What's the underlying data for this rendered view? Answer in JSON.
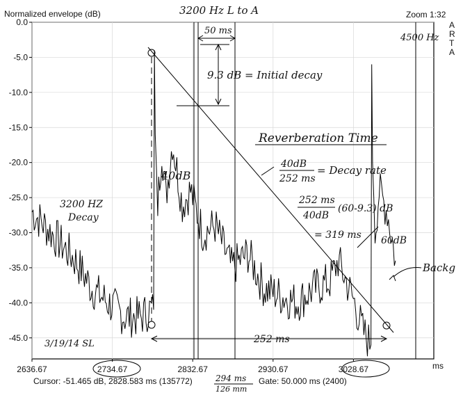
{
  "window": {
    "chart_title": "Normalized envelope (dB)",
    "zoom_label": "Zoom 1:32",
    "brand_vertical": "ARTA"
  },
  "status": {
    "cursor": "Cursor: -51.465 dB, 2828.583 ms (135772)",
    "gate": "Gate: 50.000 ms (2400)"
  },
  "chart_data": {
    "type": "line",
    "title": "Normalized envelope (dB)",
    "xlabel": "ms",
    "ylabel": "",
    "xlim": [
      2636.67,
      3126.67
    ],
    "ylim": [
      -48,
      0
    ],
    "x_ticks": [
      "2636.67",
      "2734.67",
      "2832.67",
      "2930.67",
      "3028.67"
    ],
    "y_ticks": [
      "0.0",
      "-5.0",
      "-10.0",
      "-15.0",
      "-20.0",
      "-25.0",
      "-30.0",
      "-35.0",
      "-40.0",
      "-45.0"
    ],
    "grid": true,
    "series": [
      {
        "name": "",
        "x": [
          2636.67,
          2660,
          2690,
          2710,
          2730,
          2750,
          2770,
          2780,
          2785,
          2786,
          2787,
          2790,
          2795,
          2800,
          2808,
          2820,
          2830,
          2845,
          2860,
          2880,
          2900,
          2920,
          2940,
          2960,
          2980,
          3000,
          3010,
          3020,
          3030,
          3040,
          3050,
          3051,
          3052,
          3055,
          3060,
          3070,
          3080
        ],
        "values": [
          -27,
          -30,
          -34,
          -38,
          -40,
          -42,
          -42,
          -41,
          -41,
          -4,
          -16,
          -26,
          -18,
          -25,
          -17,
          -26,
          -24,
          -30,
          -29,
          -35,
          -33,
          -38,
          -39,
          -40,
          -38,
          -37,
          -34,
          -37,
          -40,
          -44,
          -46,
          -6,
          -20,
          -30,
          -24,
          -27,
          -34
        ]
      }
    ],
    "annotations": [
      "3200 Hz  L to A",
      "50 ms",
      "9.3 dB = Initial decay",
      "4500 Hz",
      "Reverberation Time",
      "40dB / 252ms = Decay rate",
      "252ms / 40dB (60-9.3)dB",
      "= 319 ms / 60dB",
      "40dB",
      "3200 Hz Decay",
      "Backg",
      "3/19/14 SL",
      "252 ms",
      "294 ms / 126 mm"
    ]
  },
  "notes": {
    "hz3200_top": "3200 Hz  L to A",
    "hz4500": "4500 Hz",
    "ms50": "50 ms",
    "initial_decay": "9.3 dB = Initial decay",
    "rt_title": "Reverberation Time",
    "decay_num": "40dB",
    "decay_den": "252 ms",
    "decay_rate": "= Decay rate",
    "rt_num": "252 ms",
    "rt_den": "40dB",
    "rt_factor": "(60-9.3) dB",
    "rt_eq_lead": "= 319 ms",
    "rt_eq_tail": "60dB",
    "db40": "40dB",
    "decay_label_1": "3200 HZ",
    "decay_label_2": "Decay",
    "backg": "Backg",
    "date": "3/19/14 SL",
    "span_252": "252 ms",
    "bottom_num": "294 ms",
    "bottom_den": "126 mm"
  }
}
